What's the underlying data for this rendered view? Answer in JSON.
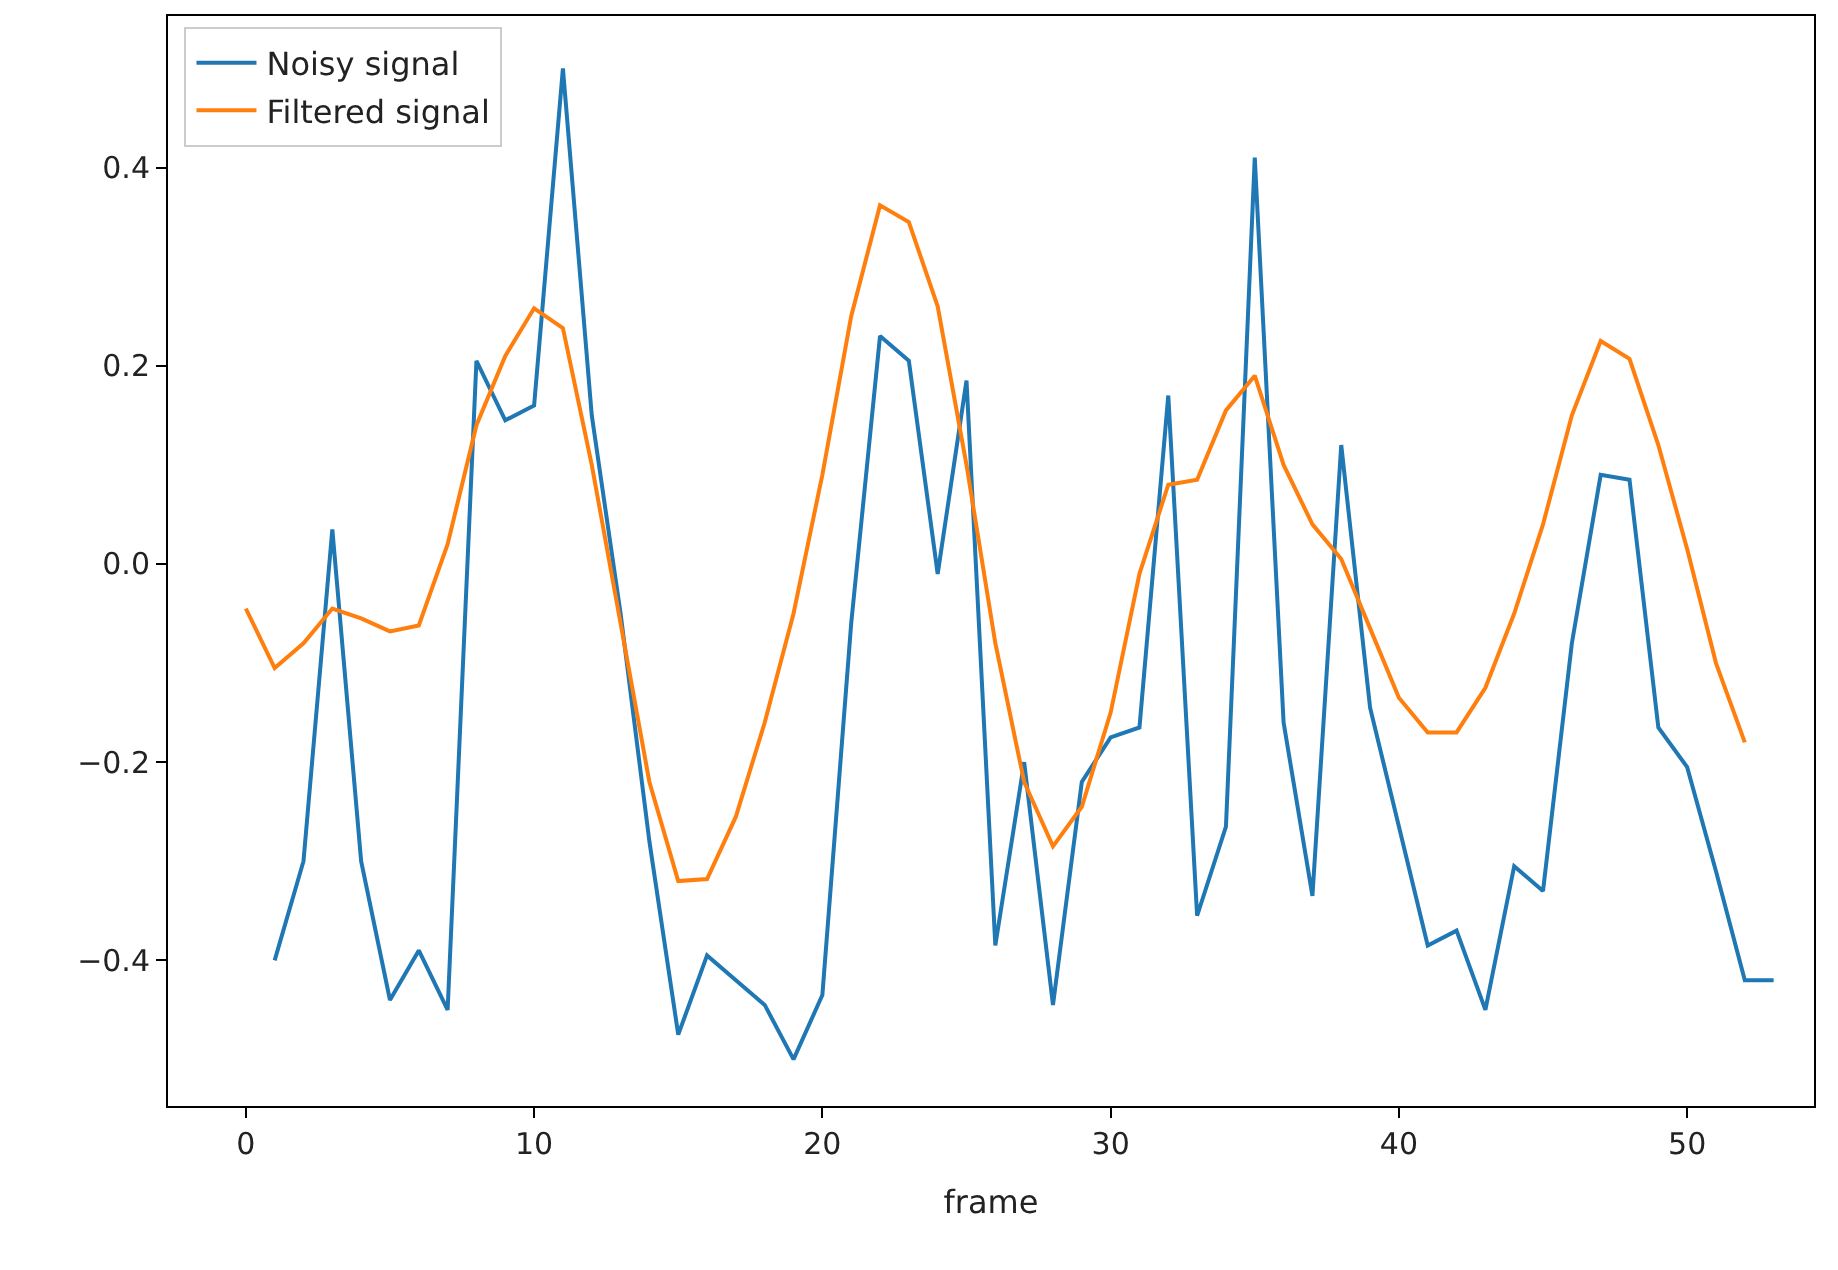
{
  "chart_data": {
    "type": "line",
    "xlabel": "frame",
    "legend": "top left",
    "xlim": [
      -2.7,
      54.4
    ],
    "xticks": [
      0,
      10,
      20,
      30,
      40,
      50
    ],
    "ylim": [
      -0.547,
      0.553
    ],
    "yticks": [
      {
        "value": -0.4,
        "label": "−0.4"
      },
      {
        "value": -0.2,
        "label": "−0.2"
      },
      {
        "value": 0.0,
        "label": "0.0"
      },
      {
        "value": 0.2,
        "label": "0.2"
      },
      {
        "value": 0.4,
        "label": "0.4"
      }
    ],
    "series": [
      {
        "name": "Noisy signal",
        "color": "#1f77b4",
        "x": [
          1,
          2,
          3,
          4,
          5,
          6,
          7,
          8,
          9,
          10,
          11,
          12,
          13,
          14,
          15,
          16,
          17,
          18,
          19,
          20,
          21,
          22,
          23,
          24,
          25,
          26,
          27,
          28,
          29,
          30,
          31,
          32,
          33,
          34,
          35,
          36,
          37,
          38,
          39,
          40,
          41,
          42,
          43,
          44,
          45,
          46,
          47,
          48,
          49,
          50,
          51,
          52,
          53
        ],
        "values": [
          -0.4,
          -0.3,
          0.035,
          -0.3,
          -0.44,
          -0.39,
          -0.45,
          0.205,
          0.145,
          0.16,
          0.5,
          0.15,
          -0.05,
          -0.28,
          -0.475,
          -0.395,
          -0.42,
          -0.445,
          -0.5,
          -0.435,
          -0.06,
          0.23,
          0.205,
          -0.01,
          0.185,
          -0.385,
          -0.2,
          -0.445,
          -0.22,
          -0.175,
          -0.165,
          0.17,
          -0.355,
          -0.265,
          0.41,
          -0.16,
          -0.335,
          0.12,
          -0.145,
          -0.265,
          -0.385,
          -0.37,
          -0.45,
          -0.305,
          -0.33,
          -0.08,
          0.09,
          0.085,
          -0.165,
          -0.205,
          -0.31,
          -0.42,
          -0.42
        ]
      },
      {
        "name": "Filtered signal",
        "color": "#ff7f0e",
        "x": [
          0,
          1,
          2,
          3,
          4,
          5,
          6,
          7,
          8,
          9,
          10,
          11,
          12,
          13,
          14,
          15,
          16,
          17,
          18,
          19,
          20,
          21,
          22,
          23,
          24,
          25,
          26,
          27,
          28,
          29,
          30,
          31,
          32,
          33,
          34,
          35,
          36,
          37,
          38,
          39,
          40,
          41,
          42,
          43,
          44,
          45,
          46,
          47,
          48,
          49,
          50,
          51,
          52
        ],
        "values": [
          -0.045,
          -0.105,
          -0.08,
          -0.045,
          -0.055,
          -0.068,
          -0.062,
          0.02,
          0.14,
          0.21,
          0.258,
          0.238,
          0.1,
          -0.06,
          -0.22,
          -0.32,
          -0.318,
          -0.255,
          -0.16,
          -0.05,
          0.09,
          0.25,
          0.362,
          0.345,
          0.26,
          0.1,
          -0.08,
          -0.22,
          -0.285,
          -0.245,
          -0.15,
          -0.01,
          0.08,
          0.085,
          0.155,
          0.19,
          0.1,
          0.04,
          0.005,
          -0.065,
          -0.135,
          -0.17,
          -0.17,
          -0.125,
          -0.05,
          0.04,
          0.15,
          0.225,
          0.207,
          0.12,
          0.015,
          -0.1,
          -0.18
        ]
      }
    ]
  }
}
